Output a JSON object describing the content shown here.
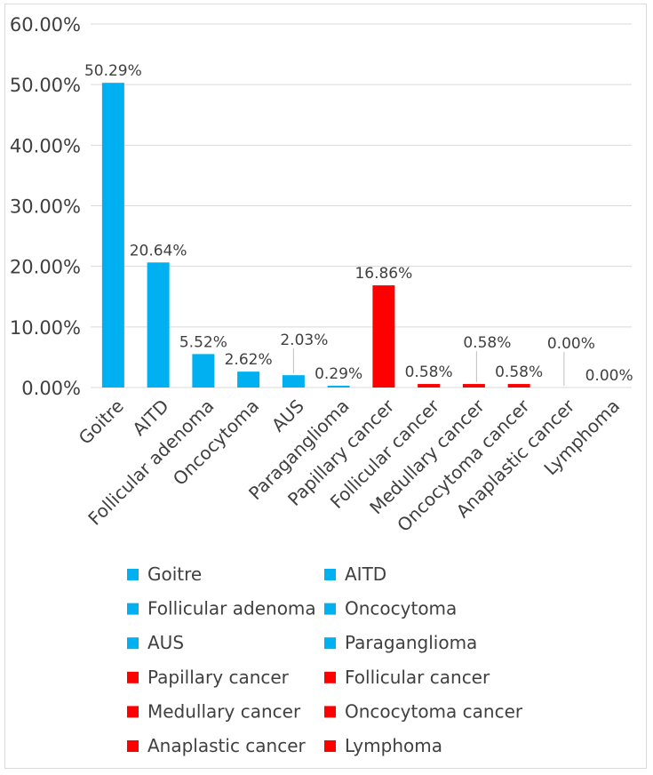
{
  "chart_data": {
    "type": "bar",
    "title": "",
    "xlabel": "",
    "ylabel": "",
    "ylim": [
      0,
      60
    ],
    "y_ticks": [
      "0.00%",
      "10.00%",
      "20.00%",
      "30.00%",
      "40.00%",
      "50.00%",
      "60.00%"
    ],
    "grid": true,
    "legend_placement": "bottom",
    "categories": [
      "Goitre",
      "AITD",
      "Follicular adenoma",
      "Oncocytoma",
      "AUS",
      "Paraganglioma",
      "Papillary cancer",
      "Follicular cancer",
      "Medullary cancer",
      "Oncocytoma cancer",
      "Anaplastic cancer",
      "Lymphoma"
    ],
    "values": [
      50.29,
      20.64,
      5.52,
      2.62,
      2.03,
      0.29,
      16.86,
      0.58,
      0.58,
      0.58,
      0.0,
      0.0
    ],
    "data_labels": [
      "50.29%",
      "20.64%",
      "5.52%",
      "2.62%",
      "2.03%",
      "0.29%",
      "16.86%",
      "0.58%",
      "0.58%",
      "0.58%",
      "0.00%",
      "0.00%"
    ],
    "colors": [
      "#00b0f0",
      "#00b0f0",
      "#00b0f0",
      "#00b0f0",
      "#00b0f0",
      "#00b0f0",
      "#ff0000",
      "#ff0000",
      "#ff0000",
      "#ff0000",
      "#ff0000",
      "#ff0000"
    ],
    "legend": [
      {
        "name": "Goitre",
        "color": "#00b0f0"
      },
      {
        "name": "AITD",
        "color": "#00b0f0"
      },
      {
        "name": "Follicular adenoma",
        "color": "#00b0f0"
      },
      {
        "name": "Oncocytoma",
        "color": "#00b0f0"
      },
      {
        "name": "AUS",
        "color": "#00b0f0"
      },
      {
        "name": "Paraganglioma",
        "color": "#00b0f0"
      },
      {
        "name": "Papillary cancer",
        "color": "#ff0000"
      },
      {
        "name": "Follicular cancer",
        "color": "#ff0000"
      },
      {
        "name": "Medullary cancer",
        "color": "#ff0000"
      },
      {
        "name": "Oncocytoma cancer",
        "color": "#ff0000"
      },
      {
        "name": "Anaplastic cancer",
        "color": "#ff0000"
      },
      {
        "name": "Lymphoma",
        "color": "#ff0000"
      }
    ]
  }
}
